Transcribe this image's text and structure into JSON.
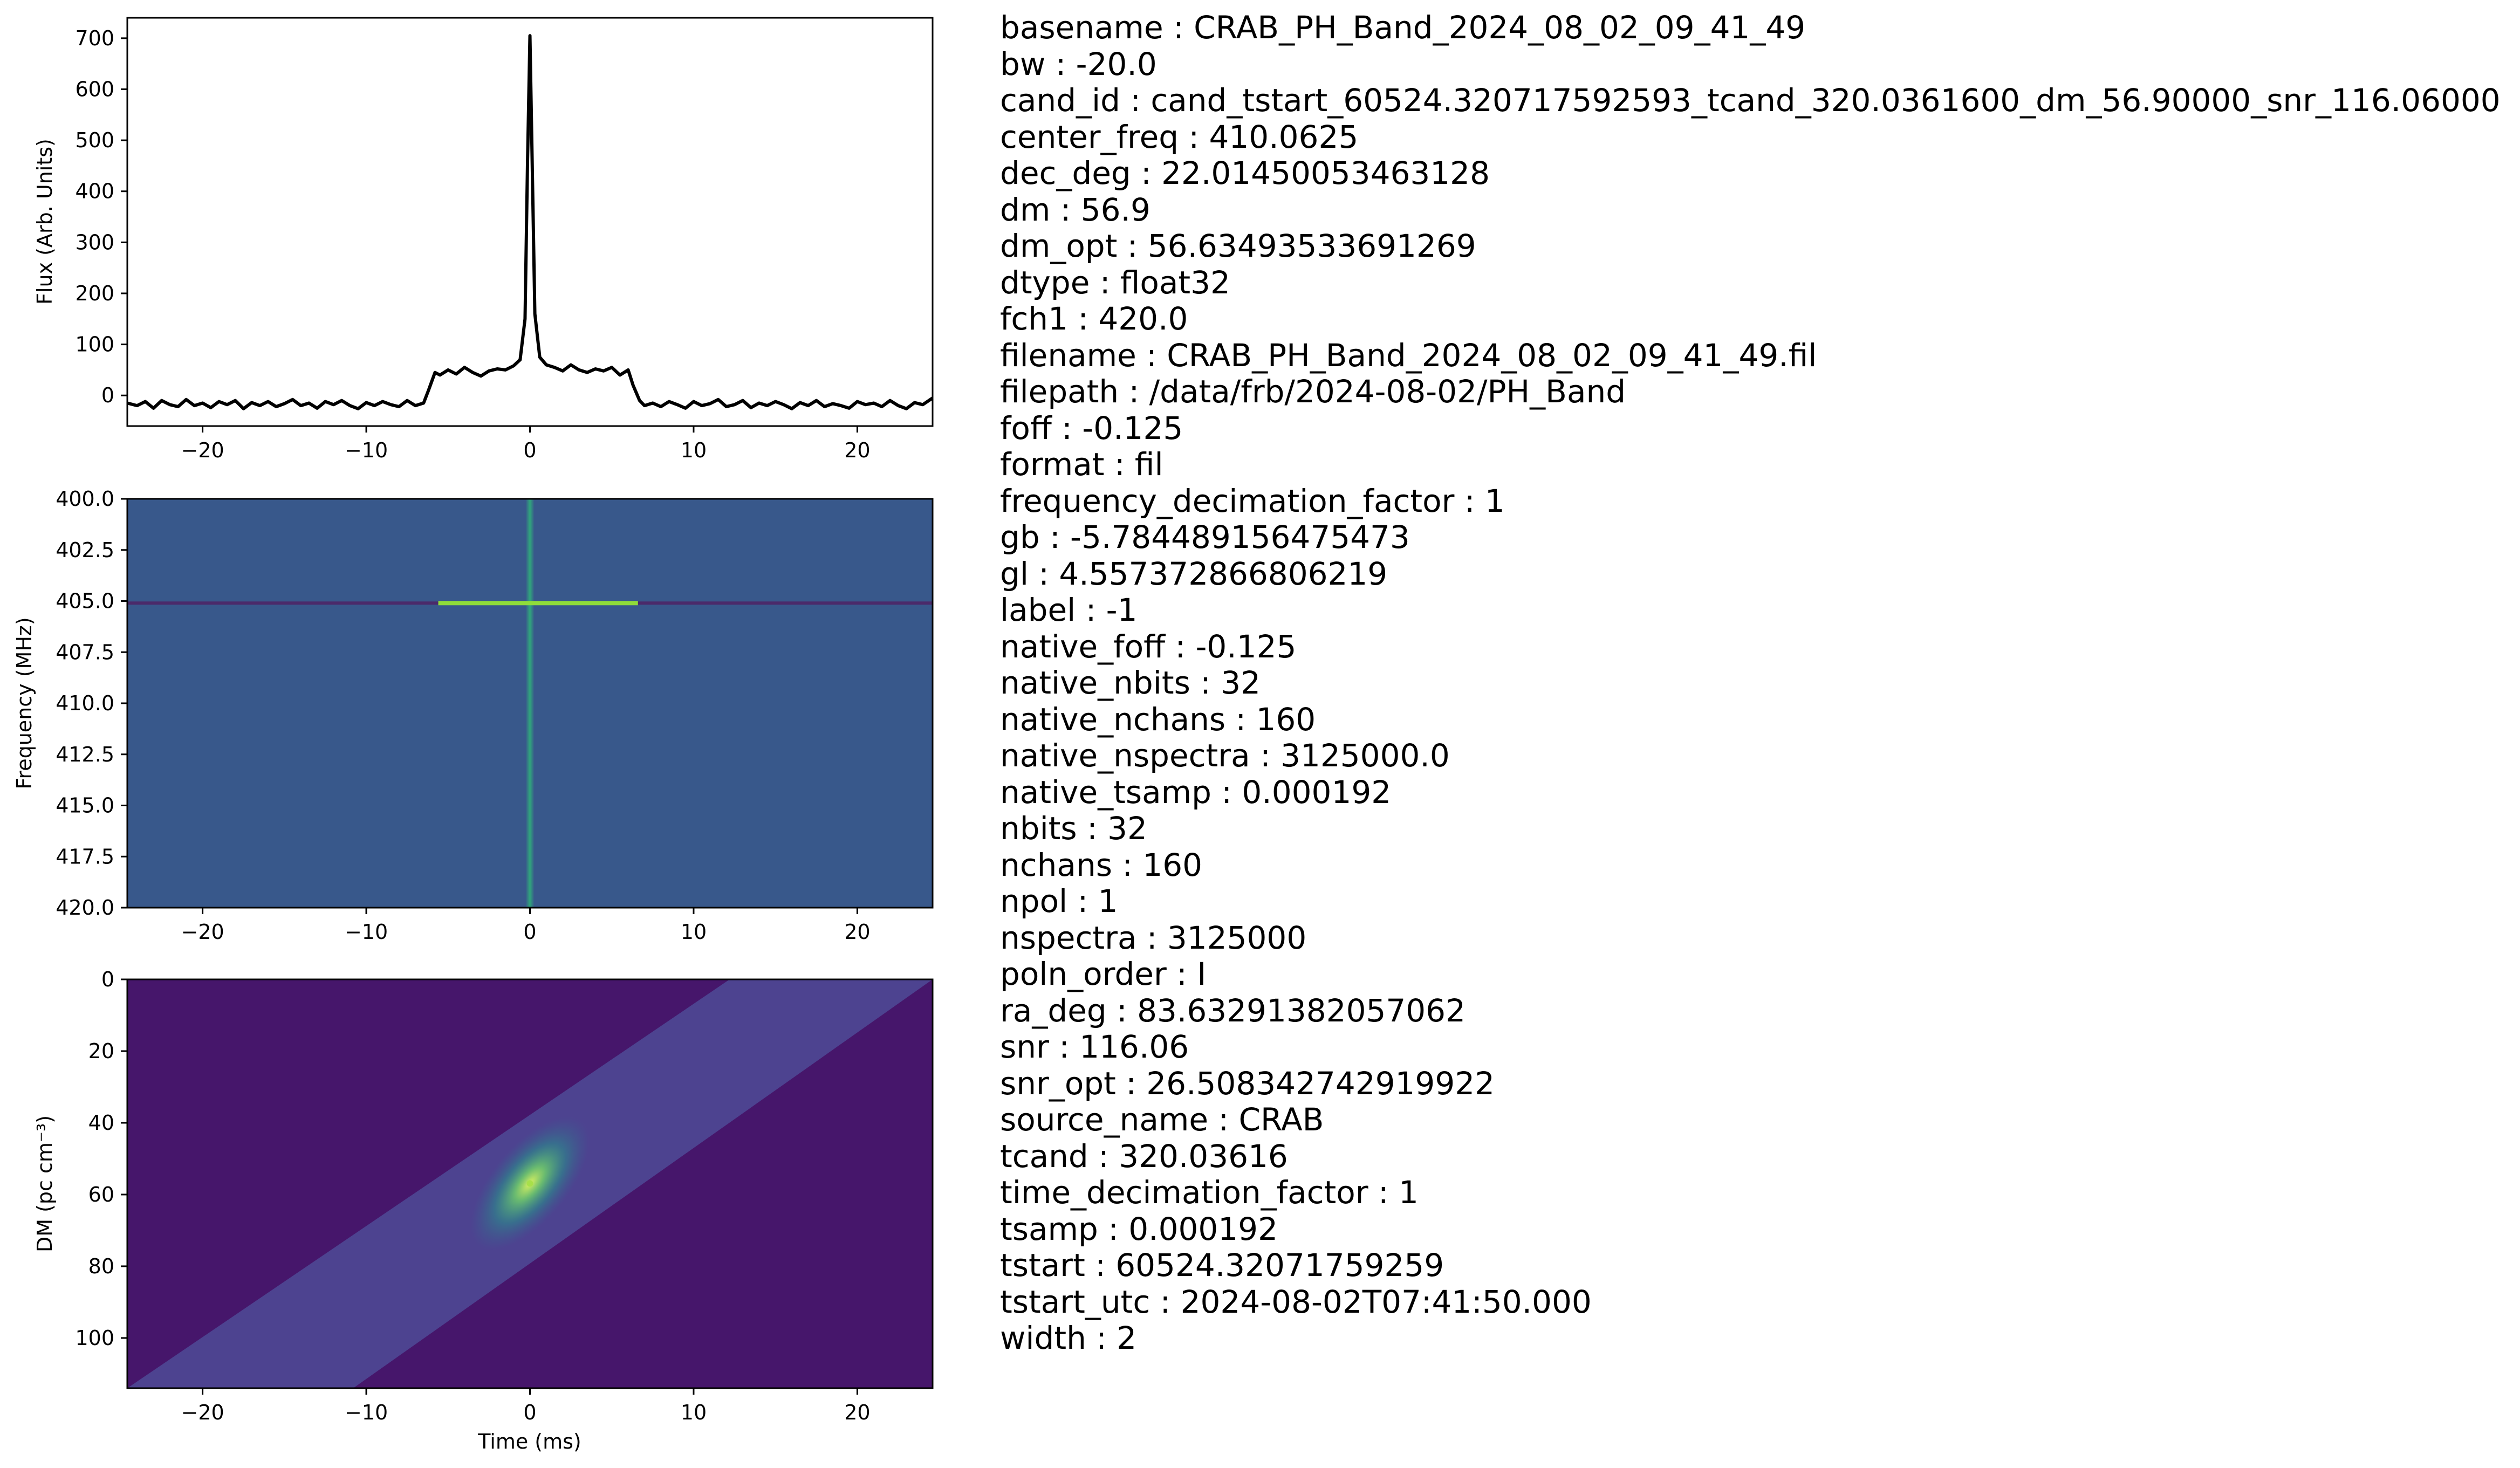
{
  "chart_data": [
    {
      "type": "line",
      "ylabel": "Flux (Arb. Units)",
      "xlim": [
        -24.6,
        24.6
      ],
      "ylim": [
        -60,
        740
      ],
      "xticks": [
        "−20",
        "−10",
        "0",
        "10",
        "20"
      ],
      "xtick_values": [
        -20,
        -10,
        0,
        10,
        20
      ],
      "yticks": [
        "0",
        "100",
        "200",
        "300",
        "400",
        "500",
        "600",
        "700"
      ],
      "ytick_values": [
        0,
        100,
        200,
        300,
        400,
        500,
        600,
        700
      ],
      "color": "#000000",
      "series": [
        {
          "x": [
            -24.6,
            -24,
            -23.5,
            -23,
            -22.5,
            -22,
            -21.5,
            -21,
            -20.5,
            -20,
            -19.5,
            -19,
            -18.5,
            -18,
            -17.5,
            -17,
            -16.5,
            -16,
            -15.5,
            -15,
            -14.5,
            -14,
            -13.5,
            -13,
            -12.5,
            -12,
            -11.5,
            -11,
            -10.5,
            -10,
            -9.5,
            -9,
            -8.5,
            -8,
            -7.5,
            -7,
            -6.5,
            -6.2,
            -5.8,
            -5.5,
            -5,
            -4.5,
            -4,
            -3.5,
            -3,
            -2.5,
            -2,
            -1.5,
            -1,
            -0.6,
            -0.3,
            -0.15,
            0,
            0.15,
            0.3,
            0.6,
            1,
            1.5,
            2,
            2.5,
            3,
            3.5,
            4,
            4.5,
            5,
            5.5,
            6,
            6.3,
            6.7,
            7,
            7.5,
            8,
            8.5,
            9,
            9.5,
            10,
            10.5,
            11,
            11.5,
            12,
            12.5,
            13,
            13.5,
            14,
            14.5,
            15,
            15.5,
            16,
            16.5,
            17,
            17.5,
            18,
            18.5,
            19,
            19.5,
            20,
            20.5,
            21,
            21.5,
            22,
            22.5,
            23,
            23.5,
            24,
            24.6
          ],
          "y": [
            -15,
            -20,
            -12,
            -25,
            -10,
            -18,
            -22,
            -8,
            -20,
            -15,
            -24,
            -12,
            -18,
            -10,
            -26,
            -14,
            -20,
            -12,
            -22,
            -16,
            -8,
            -20,
            -15,
            -25,
            -12,
            -18,
            -10,
            -20,
            -26,
            -14,
            -20,
            -12,
            -18,
            -22,
            -10,
            -20,
            -15,
            10,
            45,
            40,
            50,
            42,
            55,
            45,
            38,
            48,
            52,
            50,
            58,
            70,
            150,
            450,
            705,
            430,
            160,
            75,
            60,
            55,
            48,
            60,
            50,
            45,
            52,
            48,
            55,
            40,
            50,
            20,
            -10,
            -20,
            -15,
            -22,
            -12,
            -18,
            -25,
            -12,
            -20,
            -16,
            -8,
            -22,
            -18,
            -10,
            -24,
            -15,
            -20,
            -12,
            -18,
            -26,
            -14,
            -20,
            -10,
            -22,
            -16,
            -20,
            -25,
            -12,
            -18,
            -15,
            -22,
            -10,
            -20,
            -26,
            -14,
            -18,
            -5
          ]
        }
      ]
    },
    {
      "type": "heatmap",
      "ylabel": "Frequency (MHz)",
      "xlim": [
        -24.6,
        24.6
      ],
      "ylim": [
        400,
        420
      ],
      "xticks": [
        "−20",
        "−10",
        "0",
        "10",
        "20"
      ],
      "xtick_values": [
        -20,
        -10,
        0,
        10,
        20
      ],
      "yticks": [
        "400.0",
        "402.5",
        "405.0",
        "407.5",
        "410.0",
        "412.5",
        "415.0",
        "417.5",
        "420.0"
      ],
      "ytick_values": [
        400,
        402.5,
        405,
        407.5,
        410,
        412.5,
        415,
        417.5,
        420
      ],
      "colormap": "viridis",
      "background_color": "#3a5a8f",
      "features": [
        {
          "kind": "hline",
          "freq": 405.1,
          "x_range": [
            -24.6,
            24.6
          ],
          "color": "#4b2a6a"
        },
        {
          "kind": "hline",
          "freq": 405.1,
          "x_range": [
            -5.6,
            6.6
          ],
          "color": "#8fdc3a"
        },
        {
          "kind": "vline",
          "x": 0,
          "freq_range": [
            400,
            420
          ],
          "color": "#2fb07a"
        }
      ]
    },
    {
      "type": "heatmap",
      "xlabel": "Time (ms)",
      "ylabel": "DM (pc cm⁻³)",
      "xlim": [
        -24.6,
        24.6
      ],
      "ylim": [
        0,
        114
      ],
      "xticks": [
        "−20",
        "−10",
        "0",
        "10",
        "20"
      ],
      "xtick_values": [
        -20,
        -10,
        0,
        10,
        20
      ],
      "yticks": [
        "0",
        "20",
        "40",
        "60",
        "80",
        "100"
      ],
      "ytick_values": [
        0,
        20,
        40,
        60,
        80,
        100
      ],
      "colormap": "viridis",
      "background_color": "#46166b",
      "features": [
        {
          "kind": "band",
          "corners": [
            [
              12.2,
              0
            ],
            [
              24.6,
              0
            ],
            [
              -10.8,
              114
            ],
            [
              -24.6,
              114
            ]
          ],
          "color": "#4e4692"
        },
        {
          "kind": "peak",
          "x": 0,
          "dm": 56.9,
          "color": "#a8e04a"
        }
      ]
    }
  ],
  "metadata": [
    "basename : CRAB_PH_Band_2024_08_02_09_41_49",
    "bw : -20.0",
    "cand_id : cand_tstart_60524.320717592593_tcand_320.0361600_dm_56.90000_snr_116.06000",
    "center_freq : 410.0625",
    "dec_deg : 22.01450053463128",
    "dm : 56.9",
    "dm_opt : 56.63493533691269",
    "dtype : float32",
    "fch1 : 420.0",
    "filename : CRAB_PH_Band_2024_08_02_09_41_49.fil",
    "filepath : /data/frb/2024-08-02/PH_Band",
    "foff : -0.125",
    "format : fil",
    "frequency_decimation_factor : 1",
    "gb : -5.784489156475473",
    "gl : 4.557372866806219",
    "label : -1",
    "native_foff : -0.125",
    "native_nbits : 32",
    "native_nchans : 160",
    "native_nspectra : 3125000.0",
    "native_tsamp : 0.000192",
    "nbits : 32",
    "nchans : 160",
    "npol : 1",
    "nspectra : 3125000",
    "poln_order : I",
    "ra_deg : 83.63291382057062",
    "snr : 116.06",
    "snr_opt : 26.508342742919922",
    "source_name : CRAB",
    "tcand : 320.03616",
    "time_decimation_factor : 1",
    "tsamp : 0.000192",
    "tstart : 60524.32071759259",
    "tstart_utc : 2024-08-02T07:41:50.000",
    "width : 2"
  ]
}
